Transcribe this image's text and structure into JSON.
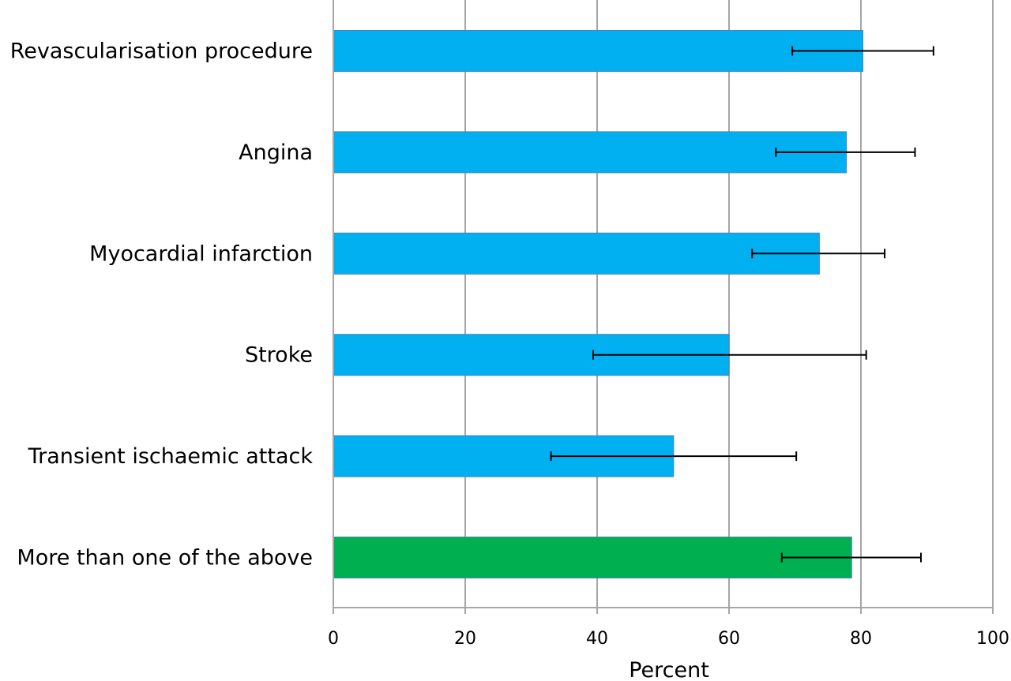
{
  "chart_data": {
    "type": "bar",
    "orientation": "horizontal",
    "xlabel": "Percent",
    "xlim": [
      0,
      100
    ],
    "xticks": [
      0,
      20,
      40,
      60,
      80,
      100
    ],
    "grid": true,
    "categories": [
      "Revascularisation procedure",
      "Angina",
      "Myocardial infarction",
      "Stroke",
      "Transient ischaemic attack",
      "More than one of the above"
    ],
    "values": [
      80.3,
      77.8,
      73.7,
      60.0,
      51.6,
      78.6
    ],
    "error_low": [
      69.6,
      67.1,
      63.5,
      39.4,
      33.0,
      68.0
    ],
    "error_high": [
      91.0,
      88.2,
      83.6,
      80.8,
      70.2,
      89.1
    ],
    "bar_colors": [
      "#00B0F0",
      "#00B0F0",
      "#00B0F0",
      "#00B0F0",
      "#00B0F0",
      "#00B050"
    ]
  }
}
